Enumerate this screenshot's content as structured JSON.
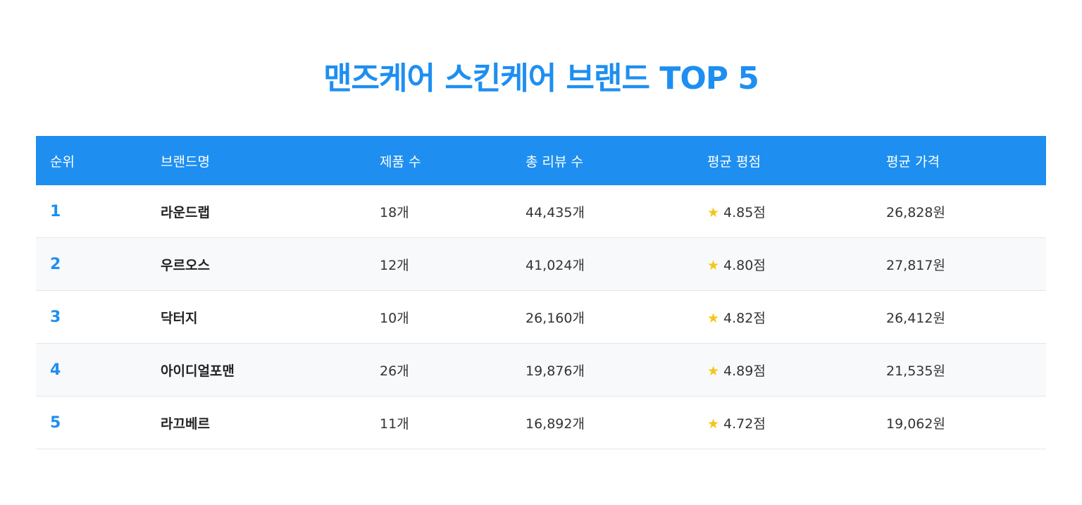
{
  "title": "맨즈케어 스킨케어 브랜드 TOP 5",
  "colors": {
    "accent": "#1e8ff0",
    "star": "#f5c518",
    "row_alt": "#f8f9fb"
  },
  "table": {
    "headers": [
      "순위",
      "브랜드명",
      "제품 수",
      "총 리뷰 수",
      "평균 평점",
      "평균 가격"
    ],
    "rows": [
      {
        "rank": "1",
        "brand": "라운드랩",
        "products": "18개",
        "reviews": "44,435개",
        "rating": "4.85점",
        "price": "26,828원"
      },
      {
        "rank": "2",
        "brand": "우르오스",
        "products": "12개",
        "reviews": "41,024개",
        "rating": "4.80점",
        "price": "27,817원"
      },
      {
        "rank": "3",
        "brand": "닥터지",
        "products": "10개",
        "reviews": "26,160개",
        "rating": "4.82점",
        "price": "26,412원"
      },
      {
        "rank": "4",
        "brand": "아이디얼포맨",
        "products": "26개",
        "reviews": "19,876개",
        "rating": "4.89점",
        "price": "21,535원"
      },
      {
        "rank": "5",
        "brand": "라끄베르",
        "products": "11개",
        "reviews": "16,892개",
        "rating": "4.72점",
        "price": "19,062원"
      }
    ],
    "star_icon": "star-icon"
  }
}
